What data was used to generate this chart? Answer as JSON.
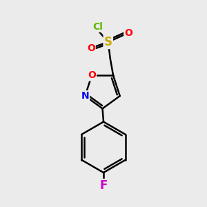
{
  "background_color": "#ebebeb",
  "bond_color": "#000000",
  "atom_colors": {
    "Cl": "#5db800",
    "S": "#ccaa00",
    "O": "#ff0000",
    "N": "#0000ee",
    "F": "#cc00cc",
    "C": "#000000"
  },
  "bond_width": 1.8,
  "font_size_large": 12,
  "font_size_small": 10,
  "figsize": [
    3.0,
    3.0
  ],
  "dpi": 100
}
